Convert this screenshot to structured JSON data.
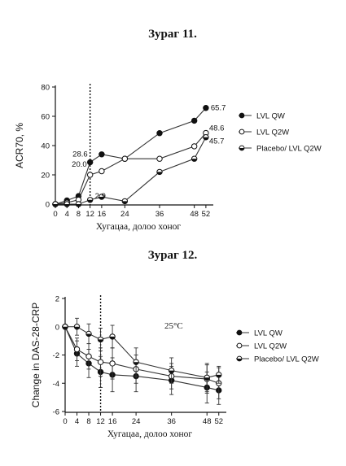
{
  "figure1": {
    "caption": "Зураг 11."
  },
  "figure2": {
    "caption": "Зураг 12."
  },
  "chart_data": [
    {
      "type": "line",
      "title": "",
      "xlabel": "Хугацаа, долоо хоног",
      "ylabel": "ACR70, %",
      "xlim": [
        0,
        54
      ],
      "ylim": [
        0,
        80
      ],
      "x_ticks": [
        0,
        4,
        8,
        12,
        16,
        24,
        36,
        48,
        52
      ],
      "x_tick_labels": [
        "0",
        "4",
        "8",
        "12",
        "16",
        "24",
        "36",
        "48",
        "52"
      ],
      "y_ticks": [
        0,
        20,
        40,
        60,
        80
      ],
      "y_tick_labels": [
        "0",
        "20",
        "40",
        "60",
        "80"
      ],
      "vline_x": 12,
      "legend_position": "right",
      "series": [
        {
          "name": "LVL QW",
          "marker": "filled",
          "x": [
            0,
            4,
            8,
            12,
            16,
            24,
            36,
            48,
            52
          ],
          "values": [
            0,
            2.5,
            5.5,
            28.6,
            34,
            31,
            48.5,
            57,
            65.7
          ]
        },
        {
          "name": "LVL Q2W",
          "marker": "open",
          "x": [
            0,
            4,
            8,
            12,
            16,
            24,
            36,
            48,
            52
          ],
          "values": [
            0,
            1,
            3,
            20.0,
            22.5,
            31,
            31,
            39.5,
            48.6
          ]
        },
        {
          "name": "Placebo/ LVL Q2W",
          "marker": "half",
          "x": [
            0,
            4,
            8,
            12,
            16,
            24,
            36,
            48,
            52
          ],
          "values": [
            0,
            0,
            0,
            2.9,
            5,
            2,
            22,
            31,
            45.7
          ]
        }
      ],
      "data_labels": [
        {
          "x": 52,
          "y": 65.7,
          "text": "65.7"
        },
        {
          "x": 52,
          "y": 48.6,
          "text": "48.6"
        },
        {
          "x": 52,
          "y": 45.7,
          "text": "45.7"
        },
        {
          "x": 12,
          "y": 28.6,
          "text": "28.6"
        },
        {
          "x": 12,
          "y": 20.0,
          "text": "20.0"
        },
        {
          "x": 12,
          "y": 2.9,
          "text": "2.9"
        }
      ]
    },
    {
      "type": "line",
      "title": "",
      "annotation": "25°C",
      "xlabel": "Хугацаа, долоо хоног",
      "ylabel": "Change in DAS-28-CRP",
      "xlim": [
        0,
        54
      ],
      "ylim": [
        -6,
        2
      ],
      "x_ticks": [
        0,
        4,
        8,
        12,
        16,
        24,
        36,
        48,
        52
      ],
      "x_tick_labels": [
        "0",
        "4",
        "8",
        "12",
        "16",
        "24",
        "36",
        "48",
        "52"
      ],
      "y_ticks": [
        2,
        0,
        -2,
        -4,
        -6
      ],
      "y_tick_labels": [
        "2",
        "0",
        "-2",
        "-4",
        "-6"
      ],
      "vline_x": 12,
      "legend_position": "right",
      "series": [
        {
          "name": "LVL QW",
          "marker": "filled",
          "x": [
            0,
            4,
            8,
            12,
            16,
            24,
            36,
            48,
            52
          ],
          "values": [
            0,
            -1.9,
            -2.6,
            -3.2,
            -3.4,
            -3.5,
            -3.8,
            -4.3,
            -4.5
          ],
          "error": [
            0,
            0.9,
            1.0,
            1.1,
            1.2,
            1.1,
            1.0,
            1.1,
            1.0
          ]
        },
        {
          "name": "LVL Q2W",
          "marker": "open",
          "x": [
            0,
            4,
            8,
            12,
            16,
            24,
            36,
            48,
            52
          ],
          "values": [
            0,
            -1.6,
            -2.1,
            -2.5,
            -2.6,
            -3.0,
            -3.5,
            -3.7,
            -4.0
          ],
          "error": [
            0,
            0.8,
            0.9,
            1.0,
            1.1,
            1.0,
            0.9,
            1.0,
            1.1
          ]
        },
        {
          "name": "Placebo/ LVL Q2W",
          "marker": "half",
          "x": [
            0,
            4,
            8,
            12,
            16,
            24,
            36,
            48,
            52
          ],
          "values": [
            0,
            0,
            -0.5,
            -0.9,
            -0.7,
            -2.5,
            -3.1,
            -3.6,
            -3.4
          ],
          "error": [
            0,
            0.6,
            0.7,
            0.8,
            0.8,
            1.0,
            0.9,
            1.0,
            0.6
          ]
        }
      ]
    }
  ]
}
